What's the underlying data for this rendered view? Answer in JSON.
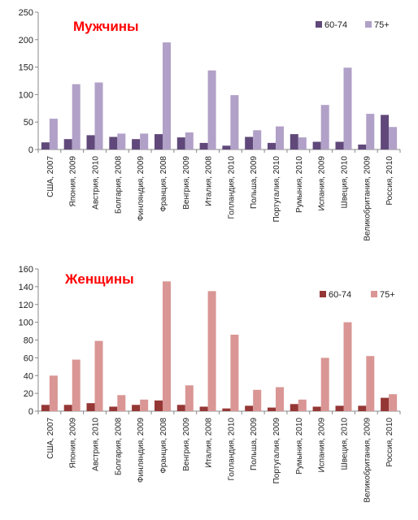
{
  "chart_data": [
    {
      "type": "bar",
      "title": "Мужчины",
      "categories": [
        "США, 2007",
        "Япония, 2009",
        "Австрия, 2010",
        "Болгария, 2008",
        "Финляндия, 2009",
        "Франция, 2008",
        "Венгрия, 2009",
        "Италия, 2008",
        "Голландия, 2010",
        "Польша, 2009",
        "Португалия, 2010",
        "Румыния, 2010",
        "Испания, 2009",
        "Швеция, 2010",
        "Великобритания, 2009",
        "Россия, 2010"
      ],
      "series": [
        {
          "name": "60-74",
          "color": "#60497a",
          "values": [
            13,
            19,
            26,
            23,
            19,
            28,
            22,
            12,
            7,
            23,
            12,
            28,
            14,
            14,
            9,
            63
          ]
        },
        {
          "name": "75+",
          "color": "#b1a0c7",
          "values": [
            56,
            119,
            122,
            29,
            29,
            195,
            31,
            144,
            99,
            35,
            42,
            22,
            81,
            149,
            65,
            41
          ]
        }
      ],
      "yticks": [
        "0",
        "50",
        "100",
        "150",
        "200",
        "250"
      ],
      "ylim": [
        0,
        250
      ],
      "legend": "top-right",
      "grid": false
    },
    {
      "type": "bar",
      "title": "Женщины",
      "categories": [
        "США, 2007",
        "Япония, 2009",
        "Австрия, 2010",
        "Болгария, 2008",
        "Финляндия, 2009",
        "Франция, 2008",
        "Венгрия, 2009",
        "Италия, 2008",
        "Голландия, 2010",
        "Польша, 2009",
        "Португалия, 2009",
        "Румыния, 2010",
        "Испания, 2009",
        "Швеция, 2010",
        "Великобритания, 2009",
        "Россия, 2010"
      ],
      "series": [
        {
          "name": "60-74",
          "color": "#953735",
          "values": [
            7,
            7,
            9,
            5,
            7,
            12,
            7,
            5,
            3,
            6,
            4,
            8,
            5,
            6,
            6,
            15
          ]
        },
        {
          "name": "75+",
          "color": "#d99694",
          "values": [
            40,
            58,
            79,
            18,
            13,
            146,
            29,
            135,
            86,
            24,
            27,
            13,
            60,
            100,
            62,
            19
          ]
        }
      ],
      "yticks": [
        "0",
        "20",
        "40",
        "60",
        "80",
        "100",
        "120",
        "140",
        "160"
      ],
      "ylim": [
        0,
        160
      ],
      "legend": "top-right",
      "grid": false
    }
  ]
}
